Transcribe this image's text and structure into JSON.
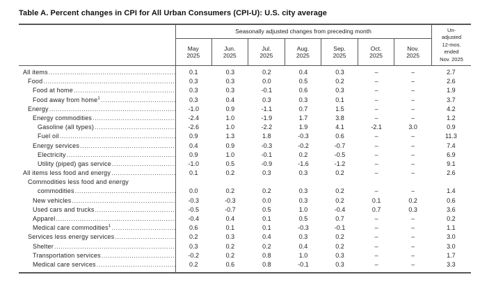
{
  "title": "Table A. Percent changes in CPI for All Urban Consumers (CPI-U): U.S. city average",
  "table": {
    "group_header": "Seasonally adjusted changes from preceding month",
    "months": [
      {
        "month": "May",
        "year": "2025"
      },
      {
        "month": "Jun.",
        "year": "2025"
      },
      {
        "month": "Jul.",
        "year": "2025"
      },
      {
        "month": "Aug.",
        "year": "2025"
      },
      {
        "month": "Sep.",
        "year": "2025"
      },
      {
        "month": "Oct.",
        "year": "2025"
      },
      {
        "month": "Nov.",
        "year": "2025"
      }
    ],
    "unadjusted_header": "Un-\nadjusted\n12-mos.\nended\nNov. 2025",
    "empty_cell": "–",
    "rows": [
      {
        "label": "All items",
        "indent": 0,
        "values": [
          "0.1",
          "0.3",
          "0.2",
          "0.4",
          "0.3",
          "–",
          "–",
          "2.7"
        ]
      },
      {
        "label": "Food",
        "indent": 1,
        "values": [
          "0.3",
          "0.3",
          "0.0",
          "0.5",
          "0.2",
          "–",
          "–",
          "2.6"
        ]
      },
      {
        "label": "Food at home",
        "indent": 2,
        "values": [
          "0.3",
          "0.3",
          "-0.1",
          "0.6",
          "0.3",
          "–",
          "–",
          "1.9"
        ]
      },
      {
        "label": "Food away from home",
        "sup": "1",
        "indent": 2,
        "values": [
          "0.3",
          "0.4",
          "0.3",
          "0.3",
          "0.1",
          "–",
          "–",
          "3.7"
        ]
      },
      {
        "label": "Energy",
        "indent": 1,
        "values": [
          "-1.0",
          "0.9",
          "-1.1",
          "0.7",
          "1.5",
          "–",
          "–",
          "4.2"
        ]
      },
      {
        "label": "Energy commodities",
        "indent": 2,
        "values": [
          "-2.4",
          "1.0",
          "-1.9",
          "1.7",
          "3.8",
          "–",
          "–",
          "1.2"
        ]
      },
      {
        "label": "Gasoline (all types)",
        "indent": 3,
        "values": [
          "-2.6",
          "1.0",
          "-2.2",
          "1.9",
          "4.1",
          "-2.1",
          "3.0",
          "0.9"
        ]
      },
      {
        "label": "Fuel oil",
        "indent": 3,
        "values": [
          "0.9",
          "1.3",
          "1.8",
          "-0.3",
          "0.6",
          "–",
          "–",
          "11.3"
        ]
      },
      {
        "label": "Energy services",
        "indent": 2,
        "values": [
          "0.4",
          "0.9",
          "-0.3",
          "-0.2",
          "-0.7",
          "–",
          "–",
          "7.4"
        ]
      },
      {
        "label": "Electricity",
        "indent": 3,
        "values": [
          "0.9",
          "1.0",
          "-0.1",
          "0.2",
          "-0.5",
          "–",
          "–",
          "6.9"
        ]
      },
      {
        "label": "Utility (piped) gas service",
        "indent": 3,
        "values": [
          "-1.0",
          "0.5",
          "-0.9",
          "-1.6",
          "-1.2",
          "–",
          "–",
          "9.1"
        ]
      },
      {
        "label": "All items less food and energy",
        "indent": 0,
        "values": [
          "0.1",
          "0.2",
          "0.3",
          "0.3",
          "0.2",
          "–",
          "–",
          "2.6"
        ]
      },
      {
        "label": "Commodities less food and energy",
        "cont": "commodities",
        "indent": 1,
        "values": [
          "0.0",
          "0.2",
          "0.2",
          "0.3",
          "0.2",
          "–",
          "–",
          "1.4"
        ]
      },
      {
        "label": "New vehicles",
        "indent": 2,
        "values": [
          "-0.3",
          "-0.3",
          "0.0",
          "0.3",
          "0.2",
          "0.1",
          "0.2",
          "0.6"
        ]
      },
      {
        "label": "Used cars and trucks",
        "indent": 2,
        "values": [
          "-0.5",
          "-0.7",
          "0.5",
          "1.0",
          "-0.4",
          "0.7",
          "0.3",
          "3.6"
        ]
      },
      {
        "label": "Apparel",
        "indent": 2,
        "values": [
          "-0.4",
          "0.4",
          "0.1",
          "0.5",
          "0.7",
          "–",
          "–",
          "0.2"
        ]
      },
      {
        "label": "Medical care commodities",
        "sup": "1",
        "indent": 2,
        "values": [
          "0.6",
          "0.1",
          "0.1",
          "-0.3",
          "-0.1",
          "–",
          "–",
          "1.1"
        ]
      },
      {
        "label": "Services less energy services",
        "indent": 1,
        "values": [
          "0.2",
          "0.3",
          "0.4",
          "0.3",
          "0.2",
          "–",
          "–",
          "3.0"
        ]
      },
      {
        "label": "Shelter",
        "indent": 2,
        "values": [
          "0.3",
          "0.2",
          "0.2",
          "0.4",
          "0.2",
          "–",
          "–",
          "3.0"
        ]
      },
      {
        "label": "Transportation services",
        "indent": 2,
        "values": [
          "-0.2",
          "0.2",
          "0.8",
          "1.0",
          "0.3",
          "–",
          "–",
          "1.7"
        ]
      },
      {
        "label": "Medical care services",
        "indent": 2,
        "values": [
          "0.2",
          "0.6",
          "0.8",
          "-0.1",
          "0.3",
          "–",
          "–",
          "3.3"
        ]
      }
    ]
  }
}
